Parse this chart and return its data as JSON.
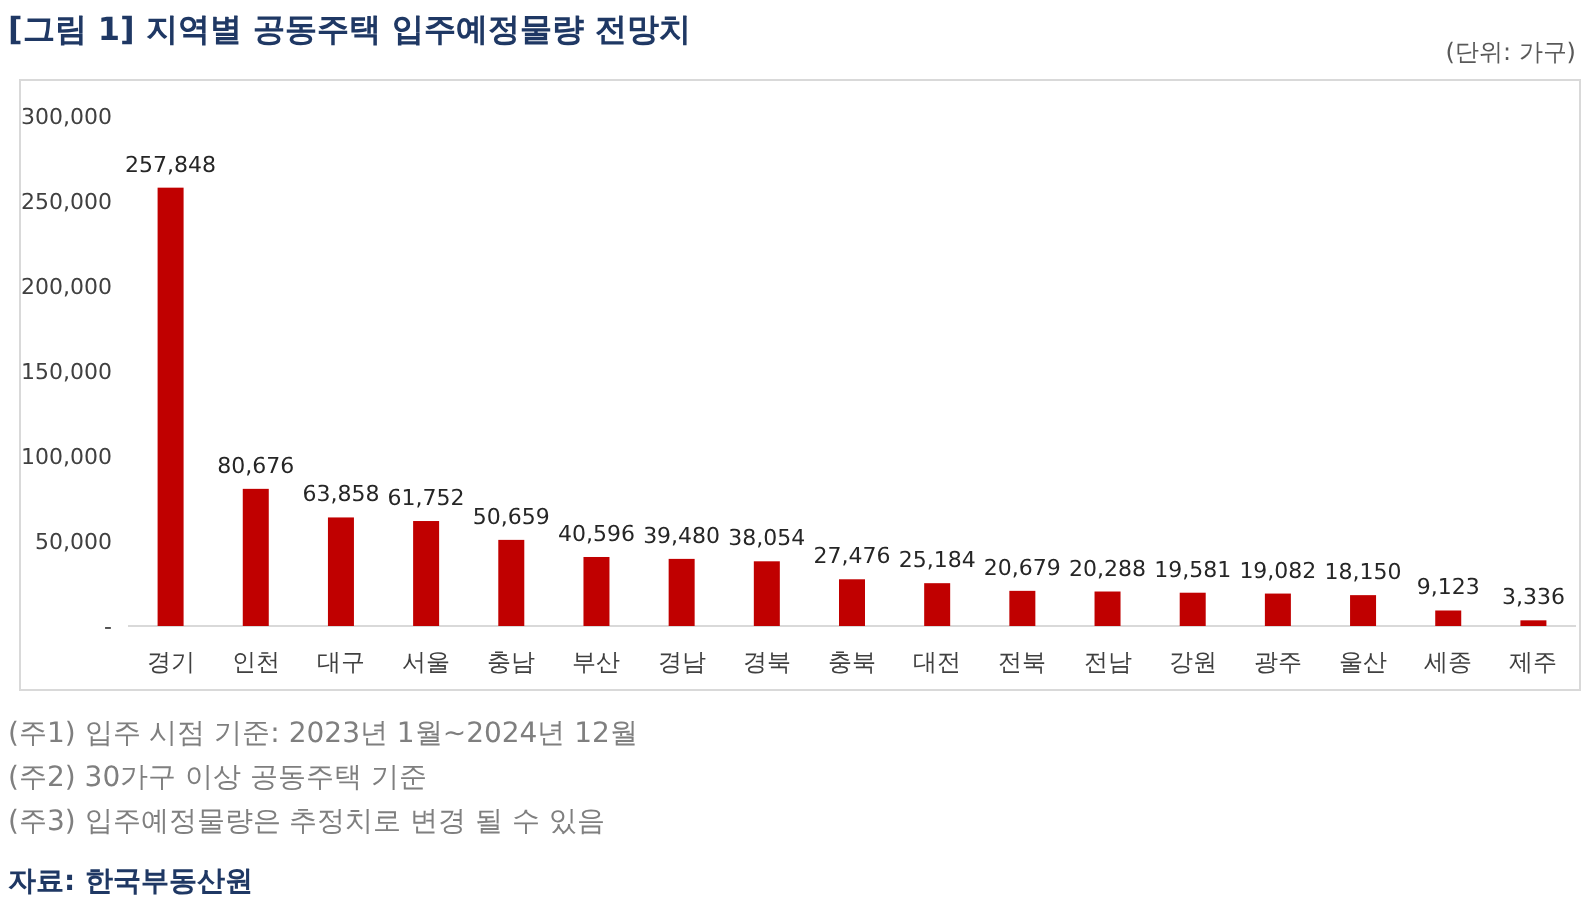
{
  "chart_data": {
    "type": "bar",
    "title": "[그림 1]  지역별 공동주택 입주예정물량 전망치",
    "categories": [
      "경기",
      "인천",
      "대구",
      "서울",
      "충남",
      "부산",
      "경남",
      "경북",
      "충북",
      "대전",
      "전북",
      "전남",
      "강원",
      "광주",
      "울산",
      "세종",
      "제주"
    ],
    "values": [
      257848,
      80676,
      63858,
      61752,
      50659,
      40596,
      39480,
      38054,
      27476,
      25184,
      20679,
      20288,
      19581,
      19082,
      18150,
      9123,
      3336
    ],
    "value_labels": [
      "257,848",
      "80,676",
      "63,858",
      "61,752",
      "50,659",
      "40,596",
      "39,480",
      "38,054",
      "27,476",
      "25,184",
      "20,679",
      "20,288",
      "19,581",
      "19,082",
      "18,150",
      "9,123",
      "3,336"
    ],
    "color": "#c00000",
    "ylim": [
      0,
      300000
    ],
    "yticks": [
      {
        "value": 0,
        "label": "-"
      },
      {
        "value": 50000,
        "label": "50,000"
      },
      {
        "value": 100000,
        "label": "100,000"
      },
      {
        "value": 150000,
        "label": "150,000"
      },
      {
        "value": 200000,
        "label": "200,000"
      },
      {
        "value": 250000,
        "label": "250,000"
      },
      {
        "value": 300000,
        "label": "300,000"
      }
    ],
    "grid": false,
    "annotations": [
      "(단위: 가구)",
      "(주1) 입주 시점 기준: 2023년 1월~2024년 12월",
      "(주2) 30가구 이상 공동주택 기준",
      "(주3) 입주예정물량은 추정치로 변경 될 수 있음",
      "자료: 한국부동산원"
    ]
  }
}
